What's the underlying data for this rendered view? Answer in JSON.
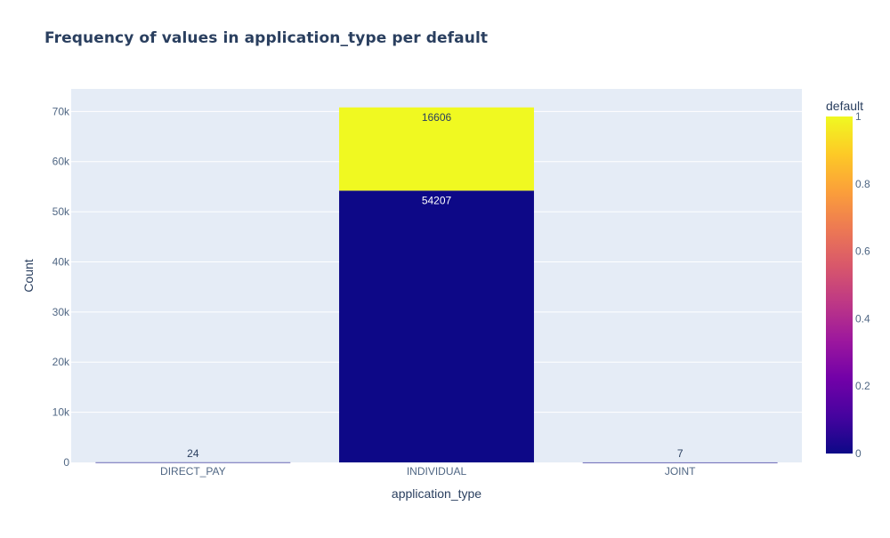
{
  "chart_data": {
    "type": "bar",
    "barmode": "stack",
    "title": "Frequency of values in application_type per default",
    "xlabel": "application_type",
    "ylabel": "Count",
    "categories": [
      "DIRECT_PAY",
      "INDIVIDUAL",
      "JOINT"
    ],
    "series": [
      {
        "default_value": 0,
        "values": [
          24,
          54207,
          7
        ],
        "color": "#0d0887"
      },
      {
        "default_value": 1,
        "values": [
          0,
          16606,
          0
        ],
        "color": "#f0f921"
      }
    ],
    "data_labels": [
      {
        "category": "DIRECT_PAY",
        "text": "24",
        "color": "#2a3f5f"
      },
      {
        "category": "INDIVIDUAL",
        "text": "54207",
        "color": "#ffffff"
      },
      {
        "category": "INDIVIDUAL",
        "text": "16606",
        "color": "#2a3f5f"
      },
      {
        "category": "JOINT",
        "text": "7",
        "color": "#2a3f5f"
      }
    ],
    "ylim": [
      0,
      74500
    ],
    "yticks": [
      0,
      10000,
      20000,
      30000,
      40000,
      50000,
      60000,
      70000
    ],
    "ytick_labels": [
      "0",
      "10k",
      "20k",
      "30k",
      "40k",
      "50k",
      "60k",
      "70k"
    ],
    "grid": true,
    "colorbar": {
      "title": "default",
      "range": [
        0,
        1
      ],
      "ticks": [
        0,
        0.2,
        0.4,
        0.6,
        0.8,
        1
      ],
      "tick_labels": [
        "0",
        "0.2",
        "0.4",
        "0.6",
        "0.8",
        "1"
      ],
      "colorscale": [
        "#0d0887",
        "#46039f",
        "#7201a8",
        "#9c179e",
        "#bd3786",
        "#d8576b",
        "#ed7953",
        "#fb9f3a",
        "#fdca26",
        "#f0f921"
      ]
    },
    "colors": {
      "plot_background": "#e5ecf6",
      "gridline": "#ffffff",
      "text": "#2a3f5f",
      "tick_text": "#506784"
    }
  }
}
